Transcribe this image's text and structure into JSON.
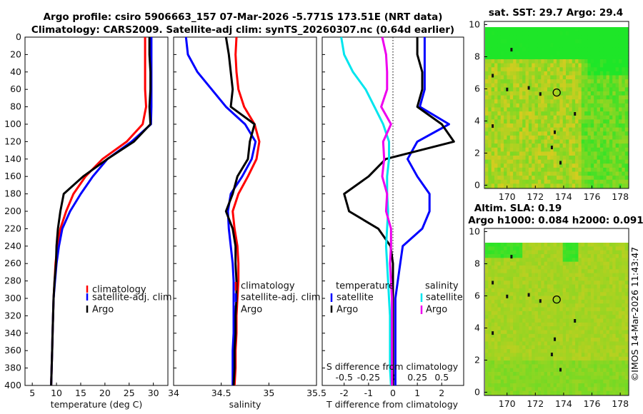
{
  "title_line1": "Argo profile: csiro 5906663_157 07-Mar-2026 -5.771S 173.51E (NRT data)",
  "title_line2": "Climatology: CARS2009. Satellite-adj clim: synTS_20260307.nc (0.64d earlier)",
  "timestamp": "©IMOS 14-Mar-2026 11:43:47",
  "colors": {
    "climatology": "#ff0000",
    "satellite": "#0000ff",
    "argo": "#000000",
    "sal_satellite": "#00e5ee",
    "sal_argo": "#ee00ee"
  },
  "depth_ticks": [
    "0",
    "20",
    "40",
    "60",
    "80",
    "100",
    "120",
    "140",
    "160",
    "180",
    "200",
    "220",
    "240",
    "260",
    "280",
    "300",
    "320",
    "340",
    "360",
    "380",
    "400"
  ],
  "panels": {
    "temperature": {
      "xlabel": "temperature (deg C)",
      "xticks": [
        "5",
        "10",
        "15",
        "20",
        "25",
        "30"
      ],
      "legend": [
        "climatology",
        "satellite-adj. clim",
        "Argo"
      ]
    },
    "salinity": {
      "xlabel": "salinity",
      "xticks": [
        "34",
        "34.5",
        "35",
        "35.5"
      ],
      "legend": [
        "climatology",
        "satellite-adj. clim",
        "Argo"
      ]
    },
    "difference": {
      "xlabel": "T difference from climatology",
      "xticks": [
        "-2",
        "-1",
        "0",
        "1",
        "2"
      ],
      "top_label": "S difference from climatology",
      "top_ticks": [
        "-0.5",
        "-0.25",
        "0",
        "0.25",
        "0.5"
      ],
      "legend_temp_title": "temperature",
      "legend_sal_title": "salinity",
      "legend_temp": [
        "satellite",
        "Argo"
      ],
      "legend_sal": [
        "satellite",
        "Argo"
      ]
    }
  },
  "map_sst": {
    "title": "sat. SST: 29.7 Argo: 29.4",
    "xticks": [
      "170",
      "172",
      "174",
      "176",
      "178"
    ],
    "yticks": [
      "0",
      "2",
      "4",
      "6",
      "8",
      "10"
    ]
  },
  "map_sla": {
    "title1": "Altim. SLA: 0.19",
    "title2": "Argo h1000: 0.084 h2000: 0.091",
    "xticks": [
      "170",
      "172",
      "174",
      "176",
      "178"
    ],
    "yticks": [
      "0",
      "2",
      "4",
      "6",
      "8",
      "10"
    ]
  },
  "chart_data": {
    "type": "line",
    "depth": [
      0,
      20,
      40,
      60,
      80,
      100,
      120,
      140,
      160,
      180,
      200,
      220,
      240,
      260,
      280,
      300,
      320,
      340,
      360,
      380,
      400
    ],
    "temperature": {
      "xlim": [
        3.5,
        33
      ],
      "ylim": [
        400,
        0
      ],
      "series": [
        {
          "name": "climatology",
          "values": [
            28.3,
            28.3,
            28.3,
            28.3,
            28.5,
            27.8,
            24.5,
            19.5,
            16,
            13.5,
            12,
            10.8,
            10.2,
            9.8,
            9.6,
            9.4,
            9.3,
            9.2,
            9.1,
            9,
            8.9
          ]
        },
        {
          "name": "satellite-adj. clim",
          "values": [
            29.6,
            29.6,
            29.6,
            29.6,
            29.6,
            29.5,
            25.5,
            20.5,
            17.5,
            15,
            12.8,
            11.2,
            10.5,
            10,
            9.7,
            9.4,
            9.3,
            9.2,
            9.1,
            9,
            8.9
          ]
        },
        {
          "name": "Argo",
          "values": [
            29.2,
            29.2,
            29.4,
            29.4,
            29.2,
            29.4,
            26,
            20.5,
            15.5,
            11.5,
            10.8,
            10.3,
            10,
            9.9,
            9.6,
            9.4,
            9.3,
            9.2,
            9.1,
            9,
            8.9
          ]
        }
      ]
    },
    "salinity": {
      "xlim": [
        34,
        35.5
      ],
      "ylim": [
        400,
        0
      ],
      "series": [
        {
          "name": "climatology",
          "values": [
            34.66,
            34.65,
            34.66,
            34.68,
            34.74,
            34.85,
            34.9,
            34.87,
            34.78,
            34.68,
            34.62,
            34.64,
            34.67,
            34.68,
            34.68,
            34.67,
            34.66,
            34.66,
            34.65,
            34.65,
            34.64
          ]
        },
        {
          "name": "satellite-adj. clim",
          "values": [
            34.13,
            34.15,
            34.25,
            34.4,
            34.55,
            34.75,
            34.86,
            34.82,
            34.72,
            34.6,
            34.57,
            34.58,
            34.6,
            34.62,
            34.63,
            34.63,
            34.63,
            34.63,
            34.62,
            34.62,
            34.62
          ]
        },
        {
          "name": "Argo",
          "values": [
            34.55,
            34.58,
            34.6,
            34.62,
            34.6,
            34.85,
            34.8,
            34.78,
            34.67,
            34.62,
            34.55,
            34.62,
            34.65,
            34.65,
            34.66,
            34.66,
            34.65,
            34.65,
            34.64,
            34.64,
            34.63
          ]
        }
      ]
    },
    "difference": {
      "xlim": [
        -2.9,
        2.9
      ],
      "ylim": [
        400,
        0
      ],
      "series": [
        {
          "name": "temperature satellite",
          "values": [
            1.3,
            1.3,
            1.3,
            1.3,
            1.1,
            2.3,
            1,
            0.6,
            1,
            1.5,
            1.5,
            1.2,
            0.4,
            0.3,
            0.2,
            0.1,
            0.1,
            0.1,
            0.1,
            0.1,
            0.1
          ]
        },
        {
          "name": "temperature Argo",
          "values": [
            1.0,
            1.0,
            1.2,
            1.2,
            1.0,
            2.0,
            2.5,
            -0.3,
            -1,
            -2,
            -1.8,
            -0.6,
            -0.1,
            0,
            0,
            0,
            0,
            0,
            0,
            0,
            0
          ]
        },
        {
          "name": "salinity satellite",
          "values": [
            -0.53,
            -0.5,
            -0.41,
            -0.28,
            -0.19,
            -0.1,
            -0.04,
            -0.04,
            -0.06,
            -0.06,
            -0.05,
            -0.06,
            -0.07,
            -0.06,
            -0.05,
            -0.04,
            -0.03,
            -0.03,
            -0.03,
            -0.03,
            -0.02
          ]
        },
        {
          "name": "salinity Argo",
          "values": [
            -0.11,
            -0.07,
            -0.06,
            -0.06,
            -0.12,
            -0.02,
            -0.1,
            -0.09,
            -0.11,
            -0.06,
            -0.07,
            -0.02,
            -0.02,
            -0.03,
            -0.02,
            -0.01,
            -0.01,
            -0.01,
            -0.01,
            -0.01,
            -0.01
          ]
        }
      ]
    }
  }
}
